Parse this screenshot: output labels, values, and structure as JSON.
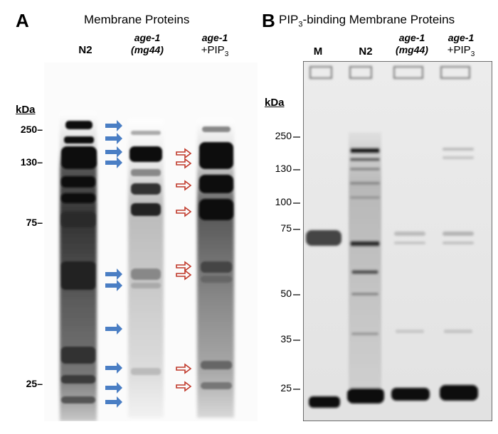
{
  "panel_a": {
    "letter": "A",
    "title": "Membrane Proteins",
    "lanes": [
      {
        "line1": "",
        "line2": "N2"
      },
      {
        "line1": "age-1",
        "line2": "(mg44)"
      },
      {
        "line1": "age-1",
        "line2": "+PIP",
        "sub": "3"
      }
    ],
    "kda_label": "kDa",
    "markers": [
      "250–",
      "130–",
      "75–",
      "25–"
    ]
  },
  "panel_b": {
    "letter": "B",
    "title_prefix": "PIP",
    "title_sub": "3",
    "title_suffix": "-binding Membrane Proteins",
    "lanes": [
      {
        "line1": "",
        "line2": "M"
      },
      {
        "line1": "",
        "line2": "N2"
      },
      {
        "line1": "age-1",
        "line2": "(mg44)"
      },
      {
        "line1": "age-1",
        "line2": "+PIP",
        "sub": "3"
      }
    ],
    "kda_label": "kDa",
    "markers": [
      "250",
      "130",
      "100",
      "75",
      "50",
      "35",
      "25"
    ]
  },
  "colors": {
    "blue_arrow": "#4a7ec4",
    "red_arrow": "#c0392b"
  }
}
